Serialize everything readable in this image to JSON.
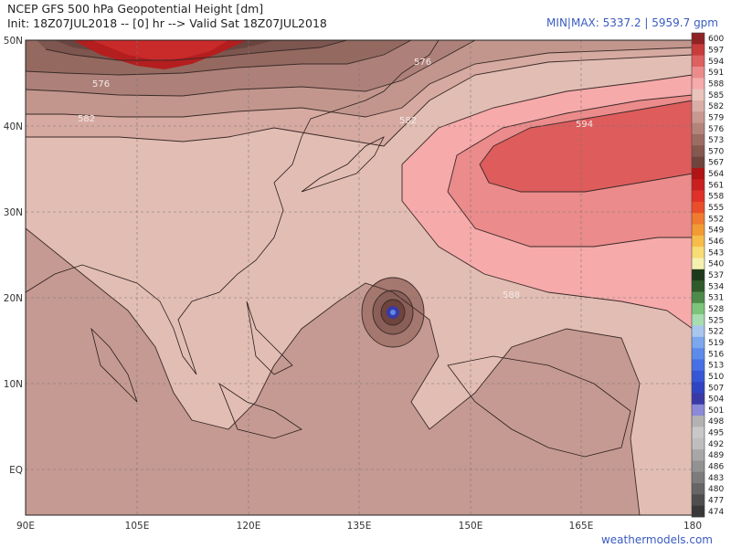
{
  "header": {
    "title": "NCEP GFS 500 hPa Geopotential Height [dm]",
    "init": "Init: 18Z07JUL2018 -- [0] hr --> Valid Sat 18Z07JUL2018",
    "minmax": "MIN|MAX: 5337.2 | 5959.7 gpm"
  },
  "axes": {
    "lon_labels": [
      "90E",
      "105E",
      "120E",
      "135E",
      "150E",
      "165E",
      "180"
    ],
    "lat_labels": [
      "50N",
      "40N",
      "30N",
      "20N",
      "10N",
      "EQ"
    ]
  },
  "contour_labels": [
    "576",
    "576",
    "582",
    "582",
    "594",
    "588"
  ],
  "colorbar": {
    "levels": [
      "600",
      "597",
      "594",
      "591",
      "588",
      "585",
      "582",
      "579",
      "576",
      "573",
      "570",
      "567",
      "564",
      "561",
      "558",
      "555",
      "552",
      "549",
      "546",
      "543",
      "540",
      "537",
      "534",
      "531",
      "528",
      "525",
      "522",
      "519",
      "516",
      "513",
      "510",
      "507",
      "504",
      "501",
      "498",
      "495",
      "492",
      "489",
      "486",
      "483",
      "480",
      "477",
      "474"
    ],
    "colors": [
      "#8f2323",
      "#c83b3b",
      "#de6060",
      "#eb8b8b",
      "#f6aaaa",
      "#e9c4bb",
      "#d9aea6",
      "#c89990",
      "#b4847b",
      "#9c6c63",
      "#855850",
      "#6e443c",
      "#b11414",
      "#c91f1f",
      "#df3127",
      "#ea4d2a",
      "#f07a2e",
      "#f39a33",
      "#f7bc4a",
      "#f8dc76",
      "#f4f0b0",
      "#1f3a1b",
      "#2f5a2a",
      "#4e8a4a",
      "#7cc47a",
      "#a7ddb0",
      "#a9c6ef",
      "#7ba7ee",
      "#5d8bea",
      "#4670e4",
      "#3557d6",
      "#2e44c2",
      "#3a3aa6",
      "#8a8ad8",
      "#b2b2b2",
      "#c8c8c8",
      "#bebebe",
      "#a7a7a7",
      "#929292",
      "#7c7c7c",
      "#666666",
      "#4e4e4e",
      "#383838"
    ]
  },
  "credit": "weathermodels.com"
}
